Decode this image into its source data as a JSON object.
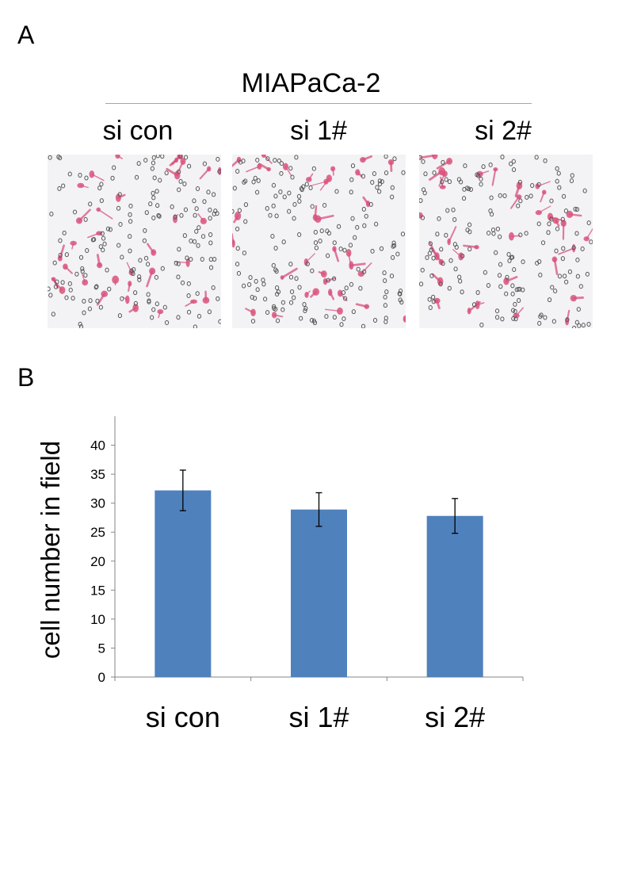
{
  "panel_a": {
    "letter": "A",
    "cell_line": "MIAPaCa-2",
    "conditions": [
      "si con",
      "si 1#",
      "si 2#"
    ]
  },
  "panel_b": {
    "letter": "B"
  },
  "colors": {
    "bar": "#4f81bd",
    "stain": "#d9517a",
    "pore": "#555555",
    "membrane": "#f3f3f6"
  },
  "chart_data": {
    "type": "bar",
    "categories": [
      "si con",
      "si 1#",
      "si 2#"
    ],
    "values": [
      32.2,
      28.9,
      27.8
    ],
    "errors": [
      3.5,
      2.9,
      3.0
    ],
    "title": "",
    "xlabel": "",
    "ylabel": "cell number in field",
    "ylim": [
      0,
      45
    ],
    "yticks": [
      0,
      5,
      10,
      15,
      20,
      25,
      30,
      35,
      40
    ],
    "grid": false,
    "legend": "none"
  }
}
